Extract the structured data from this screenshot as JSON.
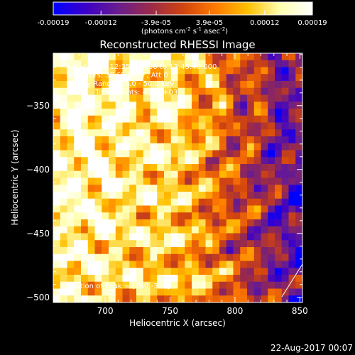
{
  "footer": {
    "date": "22-Aug-2017 00:07"
  },
  "colorbar": {
    "unit_label": "(photons cm",
    "unit_sup1": "-2",
    "unit_mid": " s",
    "unit_sup2": "-1",
    "unit_end": " asec",
    "unit_sup3": "-2",
    "unit_close": ")",
    "tick_labels": [
      "-0.00019",
      "-0.00012",
      "-3.9e-05",
      "3.9e-05",
      "0.00012",
      "0.00019"
    ],
    "min": -0.00019,
    "max": 0.00019,
    "colors": [
      "#0000ff",
      "#3c00c8",
      "#6a1d8e",
      "#9a2a4a",
      "#d04410",
      "#ff7a00",
      "#ffc000",
      "#ffffb0",
      "#ffffff"
    ]
  },
  "annotations": {
    "line1": "8-Dec-2014 12:35:40.000 to 12:45:40.000",
    "line2": "Detectors: 3F 6F 7F 9F, Att 0",
    "line3": "Energy Range: 25.0 - 50.0 keV",
    "line4": "Clean    Total counts: 4.99E+03",
    "peak": "Position of Peak = [750,-359]"
  },
  "chart_data": {
    "type": "heatmap",
    "title": "Reconstructed RHESSI Image",
    "xlabel": "Heliocentric X (arcsec)",
    "ylabel": "Heliocentric Y (arcsec)",
    "xlim": [
      660,
      852
    ],
    "ylim": [
      -504,
      -309
    ],
    "x_ticks": [
      700,
      750,
      800,
      850
    ],
    "x_tick_labels": [
      "700",
      "750",
      "800",
      "850"
    ],
    "y_ticks": [
      -500,
      -450,
      -400,
      -350
    ],
    "y_tick_labels": [
      "−500",
      "−450",
      "−400",
      "−350"
    ],
    "peak_position": [
      750,
      -359
    ],
    "time_range": [
      "8-Dec-2014 12:35:40.000",
      "12:45:40.000"
    ],
    "detectors": [
      "3F",
      "6F",
      "7F",
      "9F"
    ],
    "attenuator": 0,
    "energy_range_keV": [
      25.0,
      50.0
    ],
    "method": "Clean",
    "total_counts": 4990
  }
}
